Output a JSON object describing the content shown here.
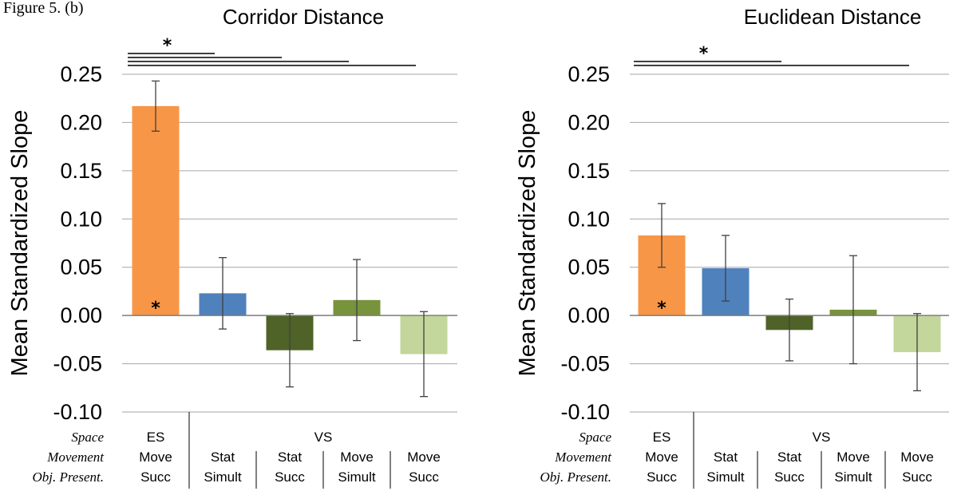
{
  "caption_fragment": "Figure 5. (b)",
  "chart_data": [
    {
      "type": "bar",
      "title": "Corridor Distance",
      "ylabel": "Mean Standardized Slope",
      "ylim": [
        -0.1,
        0.25
      ],
      "yticks": [
        "0.25",
        "0.20",
        "0.15",
        "0.10",
        "0.05",
        "0.00",
        "-0.05",
        "-0.10"
      ],
      "grid": true,
      "row_labels": [
        "Space",
        "Movement",
        "Obj. Present."
      ],
      "space_labels": [
        "ES",
        "VS"
      ],
      "categories": [
        {
          "movement": "Move",
          "presentation": "Succ"
        },
        {
          "movement": "Stat",
          "presentation": "Simult"
        },
        {
          "movement": "Stat",
          "presentation": "Succ"
        },
        {
          "movement": "Move",
          "presentation": "Simult"
        },
        {
          "movement": "Move",
          "presentation": "Succ"
        }
      ],
      "values": [
        0.217,
        0.023,
        -0.036,
        0.016,
        -0.04
      ],
      "errors": [
        0.026,
        0.037,
        0.038,
        0.042,
        0.044
      ],
      "colors": [
        "#F79646",
        "#4F81BD",
        "#4F6228",
        "#77933C",
        "#C3D69B"
      ],
      "bar_markers": [
        "*",
        "",
        "",
        "",
        ""
      ],
      "significance": {
        "label": "*",
        "from": 0,
        "to": [
          1,
          2,
          3,
          4
        ]
      }
    },
    {
      "type": "bar",
      "title": "Euclidean Distance",
      "ylabel": "Mean Standardized Slope",
      "ylim": [
        -0.1,
        0.25
      ],
      "yticks": [
        "0.25",
        "0.20",
        "0.15",
        "0.10",
        "0.05",
        "0.00",
        "-0.05",
        "-0.10"
      ],
      "grid": true,
      "row_labels": [
        "Space",
        "Movement",
        "Obj. Present."
      ],
      "space_labels": [
        "ES",
        "VS"
      ],
      "categories": [
        {
          "movement": "Move",
          "presentation": "Succ"
        },
        {
          "movement": "Stat",
          "presentation": "Simult"
        },
        {
          "movement": "Stat",
          "presentation": "Succ"
        },
        {
          "movement": "Move",
          "presentation": "Simult"
        },
        {
          "movement": "Move",
          "presentation": "Succ"
        }
      ],
      "values": [
        0.083,
        0.049,
        -0.015,
        0.006,
        -0.038
      ],
      "errors": [
        0.033,
        0.034,
        0.032,
        0.056,
        0.04
      ],
      "colors": [
        "#F79646",
        "#4F81BD",
        "#4F6228",
        "#77933C",
        "#C3D69B"
      ],
      "bar_markers": [
        "*",
        "",
        "",
        "",
        ""
      ],
      "significance": {
        "label": "*",
        "from": 0,
        "to": [
          2,
          4
        ]
      }
    }
  ]
}
